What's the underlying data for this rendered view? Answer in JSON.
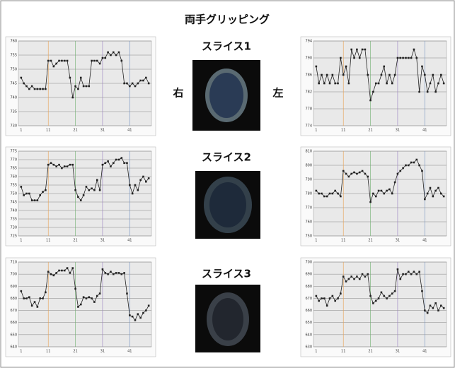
{
  "title": "両手グリッピング",
  "slices": [
    "スライス1",
    "スライス2",
    "スライス3"
  ],
  "right_label": "右",
  "left_label": "左",
  "chart_data": [
    {
      "type": "line",
      "x": [
        1,
        2,
        3,
        4,
        5,
        6,
        7,
        8,
        9,
        10,
        11,
        12,
        13,
        14,
        15,
        16,
        17,
        18,
        19,
        20,
        21,
        22,
        23,
        24,
        25,
        26,
        27,
        28,
        29,
        30,
        31,
        32,
        33,
        34,
        35,
        36,
        37,
        38,
        39,
        40,
        41,
        42,
        43,
        44,
        45,
        46,
        47,
        48
      ],
      "values": [
        747,
        745,
        744,
        743,
        744,
        743,
        743,
        743,
        743,
        743,
        753,
        753,
        751,
        752,
        753,
        753,
        753,
        753,
        747,
        740,
        744,
        743,
        747,
        744,
        744,
        744,
        753,
        753,
        753,
        752,
        754,
        754,
        756,
        755,
        756,
        755,
        756,
        753,
        745,
        745,
        744,
        745,
        744,
        745,
        746,
        746,
        747,
        745
      ],
      "xlim": [
        0,
        49
      ],
      "xticks": [
        1,
        11,
        21,
        31,
        41
      ],
      "ylim": [
        730,
        760
      ],
      "yticks": [
        730,
        735,
        740,
        745,
        750,
        755,
        760
      ],
      "color": "#222222",
      "grid": true
    },
    {
      "type": "line",
      "x": [
        1,
        2,
        3,
        4,
        5,
        6,
        7,
        8,
        9,
        10,
        11,
        12,
        13,
        14,
        15,
        16,
        17,
        18,
        19,
        20,
        21,
        22,
        23,
        24,
        25,
        26,
        27,
        28,
        29,
        30,
        31,
        32,
        33,
        34,
        35,
        36,
        37,
        38,
        39,
        40,
        41,
        42,
        43,
        44,
        45,
        46,
        47,
        48
      ],
      "values": [
        788,
        784,
        786,
        784,
        786,
        784,
        786,
        784,
        784,
        790,
        786,
        788,
        784,
        792,
        790,
        792,
        790,
        792,
        792,
        786,
        780,
        782,
        784,
        784,
        786,
        788,
        784,
        786,
        784,
        786,
        790,
        790,
        790,
        790,
        790,
        790,
        792,
        790,
        782,
        788,
        786,
        782,
        784,
        786,
        782,
        784,
        786,
        784
      ],
      "xlim": [
        0,
        49
      ],
      "xticks": [
        1,
        11,
        21,
        31,
        41
      ],
      "ylim": [
        774,
        794
      ],
      "yticks": [
        774,
        778,
        782,
        786,
        790,
        794
      ],
      "color": "#222222",
      "grid": true
    },
    {
      "type": "line",
      "x": [
        1,
        2,
        3,
        4,
        5,
        6,
        7,
        8,
        9,
        10,
        11,
        12,
        13,
        14,
        15,
        16,
        17,
        18,
        19,
        20,
        21,
        22,
        23,
        24,
        25,
        26,
        27,
        28,
        29,
        30,
        31,
        32,
        33,
        34,
        35,
        36,
        37,
        38,
        39,
        40,
        41,
        42,
        43,
        44,
        45,
        46,
        47,
        48
      ],
      "values": [
        754,
        749,
        750,
        750,
        746,
        746,
        746,
        749,
        751,
        752,
        767,
        768,
        767,
        766,
        767,
        765,
        766,
        766,
        767,
        767,
        752,
        748,
        746,
        749,
        754,
        752,
        753,
        752,
        758,
        752,
        767,
        768,
        769,
        766,
        768,
        770,
        770,
        771,
        768,
        768,
        755,
        750,
        755,
        752,
        758,
        760,
        757,
        759
      ],
      "xlim": [
        0,
        49
      ],
      "xticks": [
        1,
        11,
        21,
        31,
        41
      ],
      "ylim": [
        725,
        775
      ],
      "yticks": [
        725,
        730,
        735,
        740,
        745,
        750,
        755,
        760,
        765,
        770,
        775
      ],
      "color": "#222222",
      "grid": true
    },
    {
      "type": "line",
      "x": [
        1,
        2,
        3,
        4,
        5,
        6,
        7,
        8,
        9,
        10,
        11,
        12,
        13,
        14,
        15,
        16,
        17,
        18,
        19,
        20,
        21,
        22,
        23,
        24,
        25,
        26,
        27,
        28,
        29,
        30,
        31,
        32,
        33,
        34,
        35,
        36,
        37,
        38,
        39,
        40,
        41,
        42,
        43,
        44,
        45,
        46,
        47,
        48
      ],
      "values": [
        782,
        780,
        780,
        778,
        778,
        780,
        780,
        782,
        780,
        778,
        796,
        794,
        792,
        794,
        795,
        794,
        795,
        796,
        794,
        792,
        774,
        780,
        778,
        782,
        782,
        780,
        782,
        783,
        780,
        788,
        794,
        796,
        798,
        800,
        800,
        802,
        802,
        804,
        800,
        796,
        776,
        780,
        784,
        778,
        782,
        784,
        780,
        778
      ],
      "xlim": [
        0,
        49
      ],
      "xticks": [
        1,
        11,
        21,
        31,
        41
      ],
      "ylim": [
        750,
        810
      ],
      "yticks": [
        750,
        760,
        770,
        780,
        790,
        800,
        810
      ],
      "color": "#222222",
      "grid": true
    },
    {
      "type": "line",
      "x": [
        1,
        2,
        3,
        4,
        5,
        6,
        7,
        8,
        9,
        10,
        11,
        12,
        13,
        14,
        15,
        16,
        17,
        18,
        19,
        20,
        21,
        22,
        23,
        24,
        25,
        26,
        27,
        28,
        29,
        30,
        31,
        32,
        33,
        34,
        35,
        36,
        37,
        38,
        39,
        40,
        41,
        42,
        43,
        44,
        45,
        46,
        47,
        48
      ],
      "values": [
        686,
        680,
        680,
        681,
        674,
        677,
        673,
        680,
        680,
        685,
        702,
        700,
        699,
        701,
        703,
        703,
        703,
        705,
        701,
        705,
        688,
        673,
        675,
        681,
        680,
        681,
        680,
        677,
        682,
        684,
        704,
        701,
        700,
        702,
        700,
        701,
        701,
        700,
        701,
        684,
        666,
        665,
        662,
        667,
        664,
        668,
        670,
        674
      ],
      "xlim": [
        0,
        49
      ],
      "xticks": [
        1,
        11,
        21,
        31,
        41
      ],
      "ylim": [
        640,
        710
      ],
      "yticks": [
        640,
        650,
        660,
        670,
        680,
        690,
        700,
        710
      ],
      "color": "#222222",
      "grid": true
    },
    {
      "type": "line",
      "x": [
        1,
        2,
        3,
        4,
        5,
        6,
        7,
        8,
        9,
        10,
        11,
        12,
        13,
        14,
        15,
        16,
        17,
        18,
        19,
        20,
        21,
        22,
        23,
        24,
        25,
        26,
        27,
        28,
        29,
        30,
        31,
        32,
        33,
        34,
        35,
        36,
        37,
        38,
        39,
        40,
        41,
        42,
        43,
        44,
        45,
        46,
        47,
        48
      ],
      "values": [
        672,
        668,
        670,
        670,
        664,
        670,
        672,
        668,
        670,
        674,
        688,
        684,
        686,
        688,
        686,
        688,
        686,
        690,
        688,
        690,
        672,
        666,
        668,
        670,
        675,
        672,
        670,
        672,
        674,
        676,
        694,
        686,
        690,
        690,
        692,
        690,
        692,
        690,
        692,
        676,
        660,
        658,
        664,
        662,
        666,
        660,
        664,
        662
      ],
      "xlim": [
        0,
        49
      ],
      "xticks": [
        1,
        11,
        21,
        31,
        41
      ],
      "ylim": [
        630,
        700
      ],
      "yticks": [
        630,
        640,
        650,
        660,
        670,
        680,
        690,
        700
      ],
      "color": "#222222",
      "grid": true
    }
  ]
}
